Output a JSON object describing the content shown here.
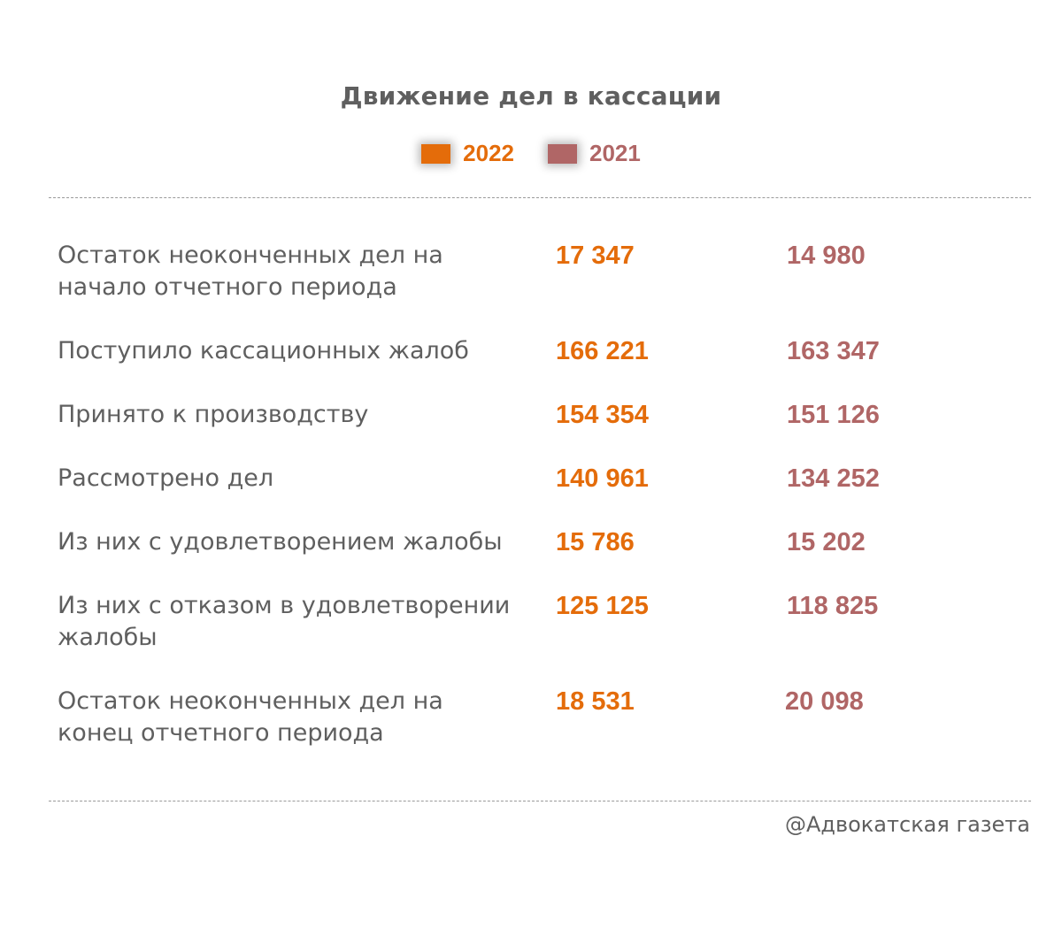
{
  "title": "Движение дел в кассации",
  "colors": {
    "year1": "#e46c0a",
    "year2": "#b06666",
    "text": "#5f5f5f"
  },
  "legend": [
    {
      "label": "2022",
      "color": "#e46c0a"
    },
    {
      "label": "2021",
      "color": "#b06666"
    }
  ],
  "rows": [
    {
      "label": "Остаток неоконченных дел на начало отчетного периода",
      "v2022": "17 347",
      "v2021": "14 980"
    },
    {
      "label": "Поступило кассационных жалоб",
      "v2022": "166 221",
      "v2021": "163 347"
    },
    {
      "label": "Принято к производству",
      "v2022": "154 354",
      "v2021": "151 126"
    },
    {
      "label": "Рассмотрено дел",
      "v2022": "140 961",
      "v2021": "134 252"
    },
    {
      "label": "Из них с удовлетворением жалобы",
      "v2022": "15 786",
      "v2021": "15 202"
    },
    {
      "label": "Из них с отказом в удовлетворении жалобы",
      "v2022": "125 125",
      "v2021": "118 825"
    },
    {
      "label": "Остаток неоконченных дел на конец отчетного периода",
      "v2022": "18 531",
      "v2021": "20 098"
    }
  ],
  "credit": "@Адвокатская газета"
}
